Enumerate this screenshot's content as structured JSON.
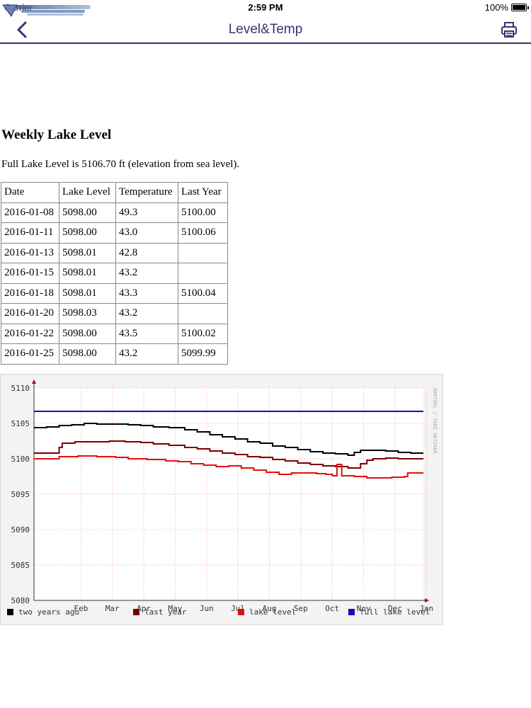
{
  "status_bar": {
    "carrier": "Carrier",
    "time": "2:59 PM",
    "battery": "100%",
    "battery_level": 1.0
  },
  "nav": {
    "title": "Level&Temp",
    "back_icon": "chevron-left-icon",
    "print_icon": "printer-icon"
  },
  "colors": {
    "accent": "#3b2f73",
    "two_years_ago": "#000000",
    "last_year": "#7a0000",
    "lake_level": "#e01010",
    "full_lake_level": "#1010b0"
  },
  "page": {
    "heading": "Weekly Lake Level",
    "full_level_text": "Full Lake Level is 5106.70 ft (elevation from sea level)."
  },
  "table": {
    "headers": [
      "Date",
      "Lake Level",
      "Temperature",
      "Last Year"
    ],
    "rows": [
      [
        "2016-01-08",
        "5098.00",
        "49.3",
        "5100.00"
      ],
      [
        "2016-01-11",
        "5098.00",
        "43.0",
        "5100.06"
      ],
      [
        "2016-01-13",
        "5098.01",
        "42.8",
        ""
      ],
      [
        "2016-01-15",
        "5098.01",
        "43.2",
        ""
      ],
      [
        "2016-01-18",
        "5098.01",
        "43.3",
        "5100.04"
      ],
      [
        "2016-01-20",
        "5098.03",
        "43.2",
        ""
      ],
      [
        "2016-01-22",
        "5098.00",
        "43.5",
        "5100.02"
      ],
      [
        "2016-01-25",
        "5098.00",
        "43.2",
        "5099.99"
      ]
    ]
  },
  "chart_data": {
    "type": "line",
    "watermark": "RRDTOOL / TOBI OETIKER",
    "ylim": [
      5080,
      5110
    ],
    "yticks": [
      5080,
      5085,
      5090,
      5095,
      5100,
      5105,
      5110
    ],
    "xlim": [
      0,
      12.4
    ],
    "xticks": [
      {
        "label": "Feb",
        "x": 1
      },
      {
        "label": "Mar",
        "x": 2
      },
      {
        "label": "Apr",
        "x": 3
      },
      {
        "label": "May",
        "x": 4
      },
      {
        "label": "Jun",
        "x": 5
      },
      {
        "label": "Jul",
        "x": 6
      },
      {
        "label": "Aug",
        "x": 7
      },
      {
        "label": "Sep",
        "x": 8
      },
      {
        "label": "Oct",
        "x": 9
      },
      {
        "label": "Nov",
        "x": 10
      },
      {
        "label": "Dec",
        "x": 11
      },
      {
        "label": "Jan",
        "x": 12
      }
    ],
    "legend_position": "bottom",
    "series": [
      {
        "name": "two years ago",
        "color": "#000000",
        "points": [
          [
            0,
            5104.4
          ],
          [
            0.4,
            5104.5
          ],
          [
            0.8,
            5104.7
          ],
          [
            1.2,
            5104.8
          ],
          [
            1.6,
            5105.0
          ],
          [
            2.0,
            5104.9
          ],
          [
            2.6,
            5104.9
          ],
          [
            3.0,
            5104.8
          ],
          [
            3.4,
            5104.7
          ],
          [
            3.8,
            5104.5
          ],
          [
            4.3,
            5104.4
          ],
          [
            4.8,
            5104.1
          ],
          [
            5.2,
            5103.8
          ],
          [
            5.6,
            5103.4
          ],
          [
            6.0,
            5103.1
          ],
          [
            6.4,
            5102.8
          ],
          [
            6.8,
            5102.4
          ],
          [
            7.2,
            5102.2
          ],
          [
            7.6,
            5101.8
          ],
          [
            8.0,
            5101.6
          ],
          [
            8.4,
            5101.3
          ],
          [
            8.8,
            5101.0
          ],
          [
            9.2,
            5100.8
          ],
          [
            9.6,
            5100.7
          ],
          [
            10.0,
            5100.5
          ],
          [
            10.2,
            5100.9
          ],
          [
            10.4,
            5101.2
          ],
          [
            10.8,
            5101.2
          ],
          [
            11.2,
            5101.1
          ],
          [
            11.6,
            5100.9
          ],
          [
            12.0,
            5100.8
          ],
          [
            12.4,
            5100.8
          ]
        ]
      },
      {
        "name": "last year",
        "color": "#7a0000",
        "points": [
          [
            0,
            5100.8
          ],
          [
            0.7,
            5100.8
          ],
          [
            0.8,
            5101.6
          ],
          [
            0.9,
            5102.2
          ],
          [
            1.3,
            5102.4
          ],
          [
            1.8,
            5102.4
          ],
          [
            2.4,
            5102.5
          ],
          [
            2.9,
            5102.4
          ],
          [
            3.4,
            5102.3
          ],
          [
            3.8,
            5102.1
          ],
          [
            4.3,
            5101.9
          ],
          [
            4.8,
            5101.6
          ],
          [
            5.2,
            5101.4
          ],
          [
            5.6,
            5101.1
          ],
          [
            6.0,
            5100.8
          ],
          [
            6.4,
            5100.6
          ],
          [
            6.8,
            5100.3
          ],
          [
            7.2,
            5100.2
          ],
          [
            7.6,
            5099.9
          ],
          [
            8.0,
            5099.7
          ],
          [
            8.4,
            5099.4
          ],
          [
            8.8,
            5099.2
          ],
          [
            9.2,
            5099.0
          ],
          [
            9.6,
            5098.9
          ],
          [
            10.0,
            5098.7
          ],
          [
            10.3,
            5098.7
          ],
          [
            10.4,
            5099.3
          ],
          [
            10.6,
            5099.8
          ],
          [
            10.8,
            5100.0
          ],
          [
            11.2,
            5100.1
          ],
          [
            11.6,
            5100.0
          ],
          [
            12.0,
            5100.0
          ],
          [
            12.4,
            5100.0
          ]
        ]
      },
      {
        "name": "lake level",
        "color": "#e01010",
        "points": [
          [
            0,
            5100.0
          ],
          [
            0.7,
            5100.0
          ],
          [
            0.8,
            5100.3
          ],
          [
            1.4,
            5100.4
          ],
          [
            2.0,
            5100.3
          ],
          [
            2.6,
            5100.2
          ],
          [
            3.0,
            5100.0
          ],
          [
            3.6,
            5099.9
          ],
          [
            4.2,
            5099.7
          ],
          [
            4.6,
            5099.6
          ],
          [
            5.0,
            5099.3
          ],
          [
            5.4,
            5099.1
          ],
          [
            5.8,
            5098.9
          ],
          [
            6.2,
            5099.0
          ],
          [
            6.6,
            5098.7
          ],
          [
            7.0,
            5098.4
          ],
          [
            7.4,
            5098.1
          ],
          [
            7.8,
            5097.8
          ],
          [
            8.1,
            5097.8
          ],
          [
            8.2,
            5098.0
          ],
          [
            8.6,
            5098.0
          ],
          [
            9.0,
            5097.9
          ],
          [
            9.3,
            5097.8
          ],
          [
            9.5,
            5097.6
          ],
          [
            9.6,
            5097.6
          ],
          [
            9.65,
            5099.2
          ],
          [
            9.75,
            5099.2
          ],
          [
            9.8,
            5097.6
          ],
          [
            10.2,
            5097.5
          ],
          [
            10.6,
            5097.3
          ],
          [
            11.0,
            5097.3
          ],
          [
            11.4,
            5097.4
          ],
          [
            11.8,
            5097.5
          ],
          [
            11.9,
            5098.0
          ],
          [
            12.4,
            5098.0
          ]
        ]
      },
      {
        "name": "full lake level",
        "color": "#1010b0",
        "points": [
          [
            0,
            5106.7
          ],
          [
            12.4,
            5106.7
          ]
        ]
      }
    ]
  }
}
